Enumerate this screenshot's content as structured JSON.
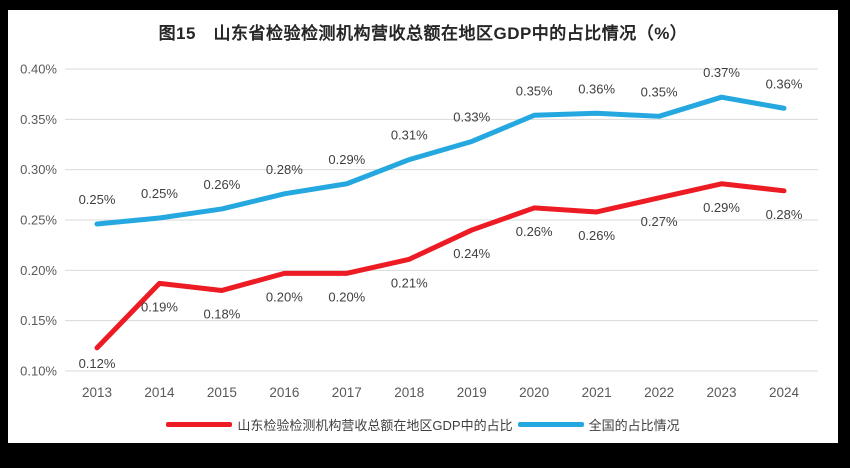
{
  "title": "图15　山东省检验检测机构营收总额在地区GDP中的占比情况（%）",
  "chart_data": {
    "type": "line",
    "title": "图15　山东省检验检测机构营收总额在地区GDP中的占比情况（%）",
    "categories": [
      "2013",
      "2014",
      "2015",
      "2016",
      "2017",
      "2018",
      "2019",
      "2020",
      "2021",
      "2022",
      "2023",
      "2024"
    ],
    "series": [
      {
        "name": "山东检验检测机构营收总额在地区GDP中的占比",
        "color": "#ED1C24",
        "values_pct": [
          0.12,
          0.19,
          0.18,
          0.2,
          0.2,
          0.21,
          0.24,
          0.26,
          0.26,
          0.27,
          0.29,
          0.28
        ],
        "labels": [
          "0.12%",
          "0.19%",
          "0.18%",
          "0.20%",
          "0.20%",
          "0.21%",
          "0.24%",
          "0.26%",
          "0.26%",
          "0.27%",
          "0.29%",
          "0.28%"
        ],
        "plot_values": [
          0.123,
          0.187,
          0.18,
          0.197,
          0.197,
          0.211,
          0.24,
          0.262,
          0.258,
          0.272,
          0.286,
          0.279
        ],
        "label_side": "below"
      },
      {
        "name": "全国的占比情况",
        "color": "#25A8E0",
        "values_pct": [
          0.25,
          0.25,
          0.26,
          0.28,
          0.29,
          0.31,
          0.33,
          0.35,
          0.36,
          0.35,
          0.37,
          0.36
        ],
        "labels": [
          "0.25%",
          "0.25%",
          "0.26%",
          "0.28%",
          "0.29%",
          "0.31%",
          "0.33%",
          "0.35%",
          "0.36%",
          "0.35%",
          "0.37%",
          "0.36%"
        ],
        "plot_values": [
          0.246,
          0.252,
          0.261,
          0.276,
          0.286,
          0.31,
          0.328,
          0.354,
          0.356,
          0.353,
          0.372,
          0.361
        ],
        "label_side": "above"
      }
    ],
    "ylim": [
      0.1,
      0.4
    ],
    "ytick_step": 0.05,
    "yticks": [
      "0.10%",
      "0.15%",
      "0.20%",
      "0.25%",
      "0.30%",
      "0.35%",
      "0.40%"
    ],
    "grid": true,
    "legend_position": "bottom",
    "style_colors": {
      "gridline": "#D9D9D9",
      "tick_text": "#595959",
      "data_label": "#3F3F3F",
      "title_text": "#262626",
      "frame_bg": "#000000",
      "panel_bg": "#FFFFFF"
    }
  },
  "legend": {
    "items": [
      {
        "label": "山东检验检测机构营收总额在地区GDP中的占比",
        "color": "#ED1C24"
      },
      {
        "label": "全国的占比情况",
        "color": "#25A8E0"
      }
    ]
  }
}
